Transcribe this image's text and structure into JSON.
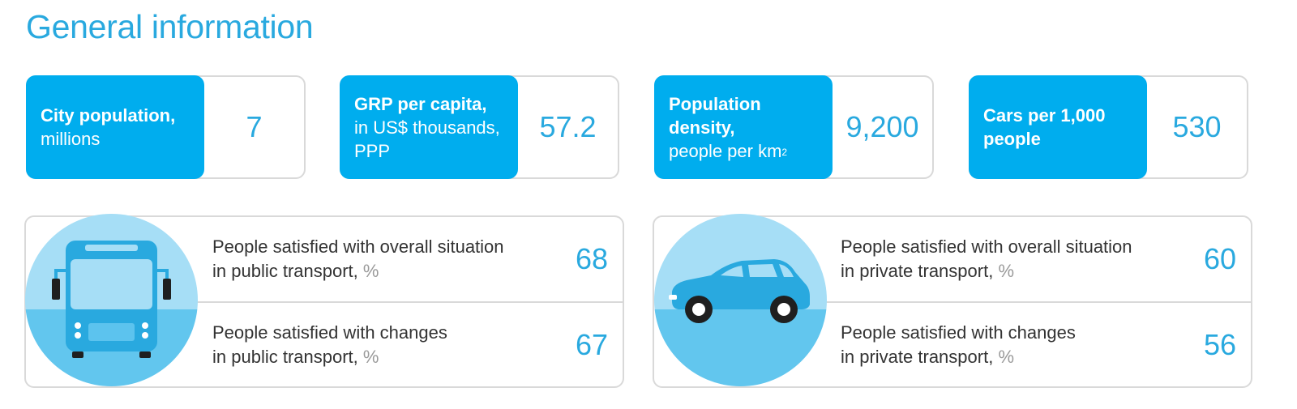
{
  "title": "General information",
  "stats": [
    {
      "label_bold": "City population,",
      "label_rest": "millions",
      "value": "7"
    },
    {
      "label_bold": "GRP per capita,",
      "label_rest": "in US$ thousands, PPP",
      "value": "57.2"
    },
    {
      "label_bold": "Population density,",
      "label_rest": "people per km",
      "label_sup": "2",
      "value": "9,200"
    },
    {
      "label_bold": "Cars per 1,000 people",
      "label_rest": "",
      "value": "530"
    }
  ],
  "public_transport": {
    "icon": "bus-icon",
    "rows": [
      {
        "line1": "People satisfied with overall situation",
        "line2": "in public transport,",
        "unit": "%",
        "value": "68"
      },
      {
        "line1": "People satisfied with changes",
        "line2": "in public transport,",
        "unit": "%",
        "value": "67"
      }
    ]
  },
  "private_transport": {
    "icon": "car-icon",
    "rows": [
      {
        "line1": "People satisfied with overall situation",
        "line2": "in private transport,",
        "unit": "%",
        "value": "60"
      },
      {
        "line1": "People satisfied with changes",
        "line2": "in private transport,",
        "unit": "%",
        "value": "56"
      }
    ]
  },
  "colors": {
    "accent": "#00adee",
    "value_text": "#29a9df",
    "border": "#d9d9d9",
    "circle_light": "#a6def6",
    "circle_dark": "#62c6ee"
  }
}
